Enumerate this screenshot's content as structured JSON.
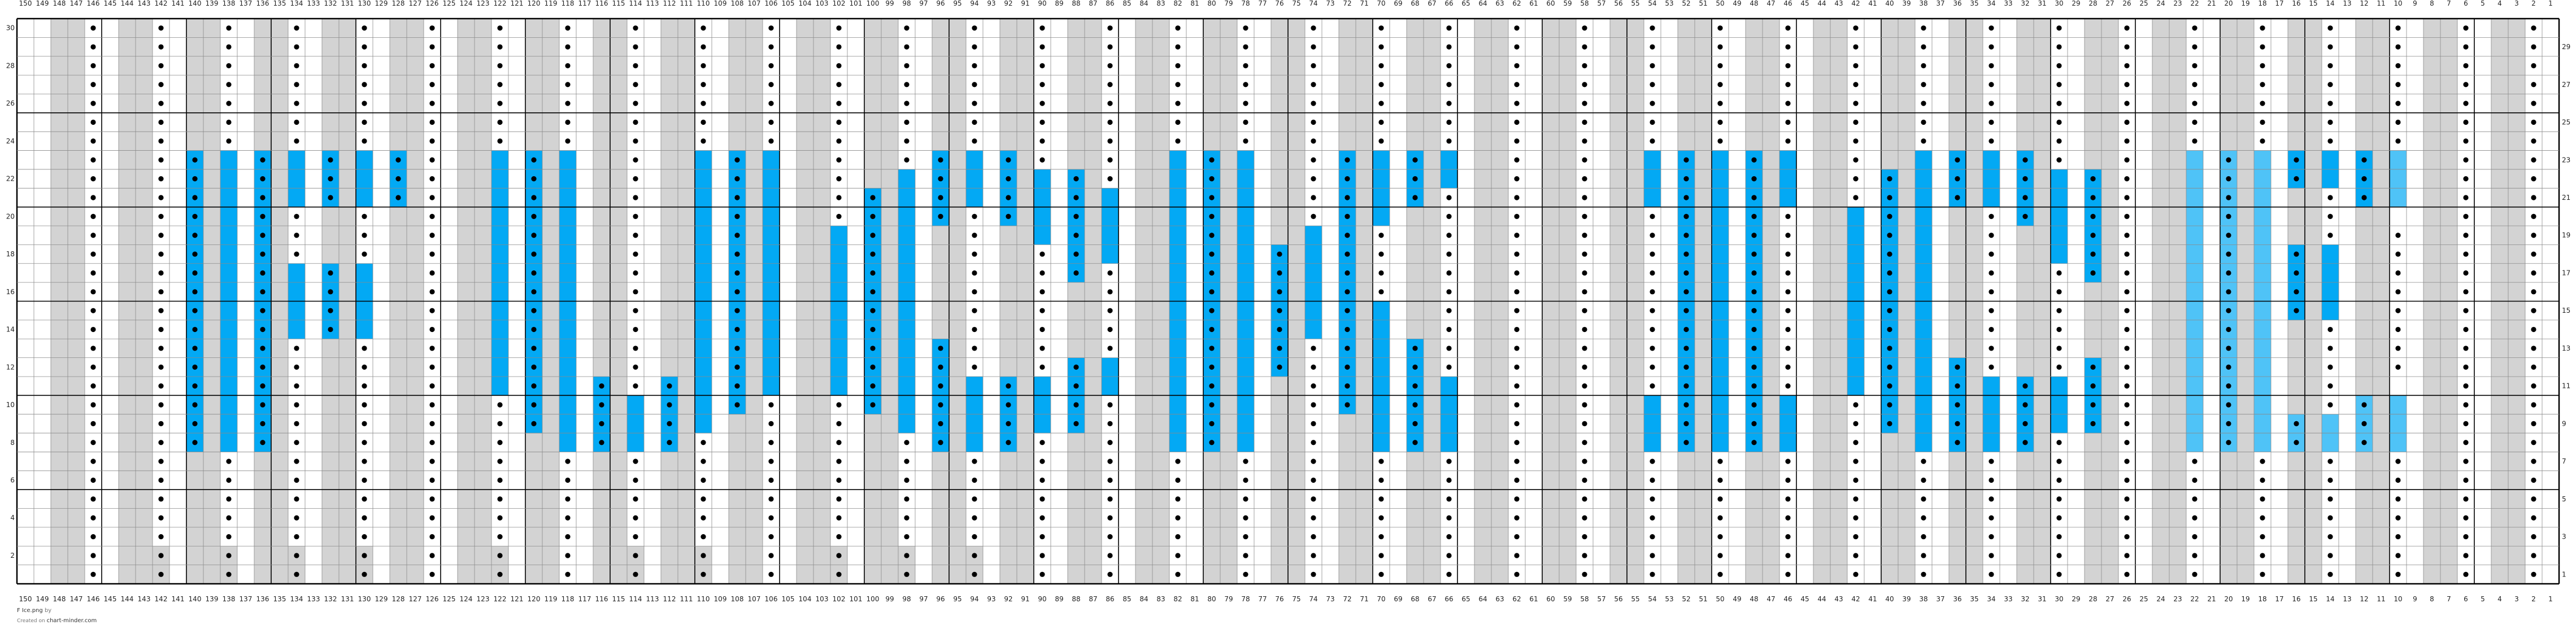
{
  "chart_data": {
    "type": "knitting-chart",
    "title": "",
    "columns": 150,
    "rows": 30,
    "column_numbering": "right-to-left",
    "row_labels": {
      "left": "even",
      "right": "odd"
    },
    "heavy_grid_every": 5,
    "colors": {
      "knit": "#ffffff",
      "purl_background": "#d3d3d3",
      "dark_blue": "#03a9f4",
      "light_blue": "#4fc3f7",
      "dot": "#000000",
      "grid": "#8a8a8a",
      "heavy_grid": "#000000"
    },
    "cell_legend": {
      "W": "white",
      "G": "grey",
      "D": "white with dot"
    },
    "base_columns_150_to_1": "WWGGDWGGDWGGDWGGDWGGDWGGDWGGDWGGDWGGDWGGDWGGDWGGDWGGDWGGDWGGDWGGDWGGDWGGDWGGDWGGDWGGDWGGDWGGDWGGDWGGDWGGDWGGDWGGDWGGDWGGDWGGDWGGDWGGDWGGDWGGDWGGDWGGDW",
    "grey_dot_cells_rows_1_2": [
      142,
      138,
      134,
      130,
      122,
      114,
      110,
      102,
      98,
      94
    ],
    "undotted_cells": [
      {
        "col": 10,
        "row": 20
      },
      {
        "col": 10,
        "row": 11
      }
    ],
    "blue_runs": [
      {
        "col": 140,
        "shade": "dark",
        "rows": [
          [
            8,
            23
          ]
        ]
      },
      {
        "col": 138,
        "shade": "dark",
        "rows": [
          [
            8,
            23
          ]
        ]
      },
      {
        "col": 136,
        "shade": "dark",
        "rows": [
          [
            8,
            23
          ]
        ]
      },
      {
        "col": 134,
        "shade": "dark",
        "rows": [
          [
            21,
            23
          ],
          [
            14,
            17
          ]
        ]
      },
      {
        "col": 132,
        "shade": "dark",
        "rows": [
          [
            21,
            23
          ],
          [
            14,
            17
          ]
        ]
      },
      {
        "col": 130,
        "shade": "dark",
        "rows": [
          [
            21,
            23
          ],
          [
            14,
            17
          ]
        ]
      },
      {
        "col": 128,
        "shade": "dark",
        "rows": [
          [
            21,
            23
          ]
        ]
      },
      {
        "col": 122,
        "shade": "dark",
        "rows": [
          [
            11,
            23
          ]
        ]
      },
      {
        "col": 120,
        "shade": "dark",
        "rows": [
          [
            9,
            23
          ]
        ]
      },
      {
        "col": 118,
        "shade": "dark",
        "rows": [
          [
            8,
            23
          ]
        ]
      },
      {
        "col": 116,
        "shade": "dark",
        "rows": [
          [
            8,
            11
          ]
        ]
      },
      {
        "col": 114,
        "shade": "dark",
        "rows": [
          [
            8,
            10
          ]
        ]
      },
      {
        "col": 112,
        "shade": "dark",
        "rows": [
          [
            8,
            11
          ]
        ]
      },
      {
        "col": 110,
        "shade": "dark",
        "rows": [
          [
            9,
            23
          ]
        ]
      },
      {
        "col": 108,
        "shade": "dark",
        "rows": [
          [
            10,
            23
          ]
        ]
      },
      {
        "col": 106,
        "shade": "dark",
        "rows": [
          [
            11,
            23
          ]
        ]
      },
      {
        "col": 102,
        "shade": "dark",
        "rows": [
          [
            11,
            19
          ]
        ]
      },
      {
        "col": 100,
        "shade": "dark",
        "rows": [
          [
            10,
            21
          ]
        ]
      },
      {
        "col": 98,
        "shade": "dark",
        "rows": [
          [
            9,
            22
          ]
        ]
      },
      {
        "col": 96,
        "shade": "dark",
        "rows": [
          [
            20,
            23
          ],
          [
            8,
            13
          ]
        ]
      },
      {
        "col": 94,
        "shade": "dark",
        "rows": [
          [
            21,
            23
          ],
          [
            8,
            11
          ]
        ]
      },
      {
        "col": 92,
        "shade": "dark",
        "rows": [
          [
            20,
            23
          ],
          [
            8,
            11
          ]
        ]
      },
      {
        "col": 90,
        "shade": "dark",
        "rows": [
          [
            19,
            22
          ],
          [
            9,
            11
          ]
        ]
      },
      {
        "col": 88,
        "shade": "dark",
        "rows": [
          [
            17,
            22
          ],
          [
            9,
            12
          ]
        ]
      },
      {
        "col": 86,
        "shade": "dark",
        "rows": [
          [
            18,
            21
          ],
          [
            11,
            12
          ]
        ]
      },
      {
        "col": 82,
        "shade": "dark",
        "rows": [
          [
            8,
            23
          ]
        ]
      },
      {
        "col": 80,
        "shade": "dark",
        "rows": [
          [
            8,
            23
          ]
        ]
      },
      {
        "col": 78,
        "shade": "dark",
        "rows": [
          [
            8,
            23
          ]
        ]
      },
      {
        "col": 76,
        "shade": "dark",
        "rows": [
          [
            12,
            18
          ]
        ]
      },
      {
        "col": 74,
        "shade": "dark",
        "rows": [
          [
            14,
            19
          ]
        ]
      },
      {
        "col": 72,
        "shade": "dark",
        "rows": [
          [
            10,
            23
          ]
        ]
      },
      {
        "col": 70,
        "shade": "dark",
        "rows": [
          [
            20,
            23
          ],
          [
            8,
            15
          ]
        ]
      },
      {
        "col": 68,
        "shade": "dark",
        "rows": [
          [
            21,
            23
          ],
          [
            8,
            13
          ]
        ]
      },
      {
        "col": 66,
        "shade": "dark",
        "rows": [
          [
            22,
            23
          ],
          [
            8,
            11
          ]
        ]
      },
      {
        "col": 54,
        "shade": "dark",
        "rows": [
          [
            21,
            23
          ],
          [
            8,
            10
          ]
        ]
      },
      {
        "col": 52,
        "shade": "dark",
        "rows": [
          [
            8,
            23
          ]
        ]
      },
      {
        "col": 50,
        "shade": "dark",
        "rows": [
          [
            8,
            23
          ]
        ]
      },
      {
        "col": 48,
        "shade": "dark",
        "rows": [
          [
            8,
            23
          ]
        ]
      },
      {
        "col": 46,
        "shade": "dark",
        "rows": [
          [
            21,
            23
          ],
          [
            8,
            10
          ]
        ]
      },
      {
        "col": 42,
        "shade": "dark",
        "rows": [
          [
            11,
            20
          ]
        ]
      },
      {
        "col": 40,
        "shade": "dark",
        "rows": [
          [
            9,
            22
          ]
        ]
      },
      {
        "col": 38,
        "shade": "dark",
        "rows": [
          [
            8,
            23
          ]
        ]
      },
      {
        "col": 36,
        "shade": "dark",
        "rows": [
          [
            21,
            23
          ],
          [
            8,
            12
          ]
        ]
      },
      {
        "col": 34,
        "shade": "dark",
        "rows": [
          [
            21,
            23
          ],
          [
            8,
            11
          ]
        ]
      },
      {
        "col": 32,
        "shade": "dark",
        "rows": [
          [
            20,
            23
          ],
          [
            8,
            11
          ]
        ]
      },
      {
        "col": 30,
        "shade": "dark",
        "rows": [
          [
            18,
            22
          ],
          [
            9,
            11
          ]
        ]
      },
      {
        "col": 28,
        "shade": "dark",
        "rows": [
          [
            17,
            22
          ],
          [
            9,
            12
          ]
        ]
      },
      {
        "col": 22,
        "shade": "light",
        "rows": [
          [
            8,
            23
          ]
        ]
      },
      {
        "col": 20,
        "shade": "light",
        "rows": [
          [
            8,
            23
          ]
        ]
      },
      {
        "col": 18,
        "shade": "light",
        "rows": [
          [
            8,
            23
          ]
        ]
      },
      {
        "col": 16,
        "shade": "dark",
        "rows": [
          [
            22,
            23
          ],
          [
            15,
            18
          ]
        ]
      },
      {
        "col": 16,
        "shade": "light",
        "rows": [
          [
            8,
            9
          ]
        ]
      },
      {
        "col": 14,
        "shade": "dark",
        "rows": [
          [
            22,
            23
          ],
          [
            15,
            18
          ]
        ]
      },
      {
        "col": 14,
        "shade": "light",
        "rows": [
          [
            8,
            9
          ]
        ]
      },
      {
        "col": 12,
        "shade": "dark",
        "rows": [
          [
            21,
            23
          ]
        ]
      },
      {
        "col": 12,
        "shade": "light",
        "rows": [
          [
            8,
            10
          ]
        ]
      },
      {
        "col": 10,
        "shade": "light",
        "rows": [
          [
            21,
            23
          ],
          [
            8,
            10
          ]
        ]
      }
    ]
  },
  "footer": {
    "filename": "F Ice.png",
    "by": "by",
    "created_on": "Created on",
    "site": "chart-minder.com"
  }
}
